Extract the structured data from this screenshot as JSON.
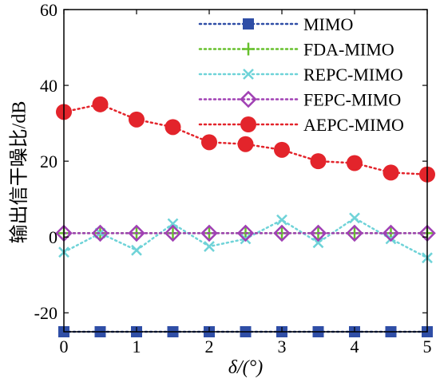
{
  "chart_data": {
    "type": "line",
    "xlabel": "δ/(°)",
    "ylabel": "输出信干噪比/dB",
    "xlim": [
      0,
      5
    ],
    "ylim": [
      -25,
      60
    ],
    "xticks": [
      0,
      1,
      2,
      3,
      4,
      5
    ],
    "yticks": [
      -20,
      0,
      20,
      40,
      60
    ],
    "x": [
      0,
      0.5,
      1,
      1.5,
      2,
      2.5,
      3,
      3.5,
      4,
      4.5,
      5
    ],
    "grid": false,
    "legend_position": "top-right",
    "series": [
      {
        "name": "MIMO",
        "color": "#2f4ea6",
        "marker": "square",
        "values": [
          -25,
          -25,
          -25,
          -25,
          -25,
          -25,
          -25,
          -25,
          -25,
          -25,
          -25
        ]
      },
      {
        "name": "FDA-MIMO",
        "color": "#66c02c",
        "marker": "plus",
        "values": [
          1,
          1,
          1,
          1,
          1,
          1,
          1,
          1,
          1,
          1,
          1
        ]
      },
      {
        "name": "REPC-MIMO",
        "color": "#6fd3d8",
        "marker": "x",
        "values": [
          -4,
          1,
          -3.5,
          3.5,
          -2.5,
          -0.5,
          4.5,
          -1.5,
          5,
          -0.5,
          -5.5
        ]
      },
      {
        "name": "FEPC-MIMO",
        "color": "#a040b4",
        "marker": "diamond",
        "values": [
          1,
          1,
          1,
          1,
          1,
          1,
          1,
          1,
          1,
          1,
          1
        ]
      },
      {
        "name": "AEPC-MIMO",
        "color": "#e3242b",
        "marker": "circle",
        "values": [
          33,
          35,
          31,
          29,
          25,
          24.5,
          23,
          20,
          19.5,
          17,
          16.5
        ]
      }
    ]
  }
}
